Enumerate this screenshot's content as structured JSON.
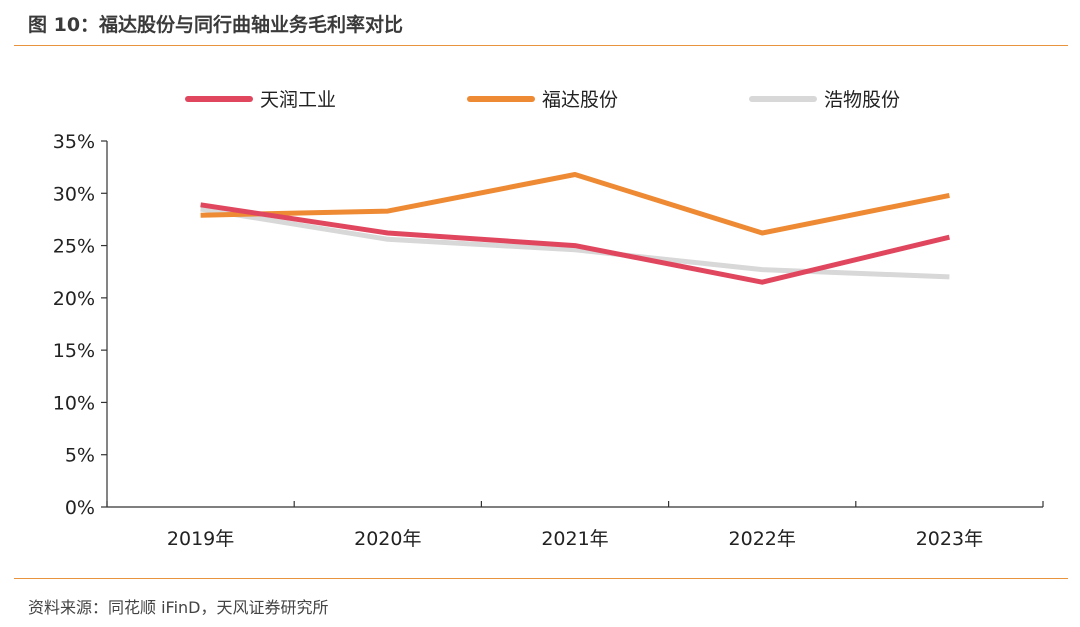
{
  "header": {
    "title": "图 10：福达股份与同行曲轴业务毛利率对比"
  },
  "footer": {
    "source": "资料来源：同花顺 iFinD，天风证券研究所"
  },
  "chart_data": {
    "type": "line",
    "title": "",
    "xlabel": "",
    "ylabel": "",
    "categories": [
      "2019年",
      "2020年",
      "2021年",
      "2022年",
      "2023年"
    ],
    "ylim": [
      0,
      35
    ],
    "y_ticks": [
      "0%",
      "5%",
      "10%",
      "15%",
      "20%",
      "25%",
      "30%",
      "35%"
    ],
    "y_tick_values": [
      0,
      5,
      10,
      15,
      20,
      25,
      30,
      35
    ],
    "grid": false,
    "legend_position": "top",
    "series": [
      {
        "name": "天润工业",
        "color": "#e0475f",
        "values": [
          28.9,
          26.2,
          25.0,
          21.5,
          25.8
        ]
      },
      {
        "name": "福达股份",
        "color": "#ee8a33",
        "values": [
          27.9,
          28.3,
          31.8,
          26.2,
          29.8
        ]
      },
      {
        "name": "浩物股份",
        "color": "#d8d8d8",
        "values": [
          28.5,
          25.6,
          24.6,
          22.7,
          22.0
        ]
      }
    ]
  }
}
